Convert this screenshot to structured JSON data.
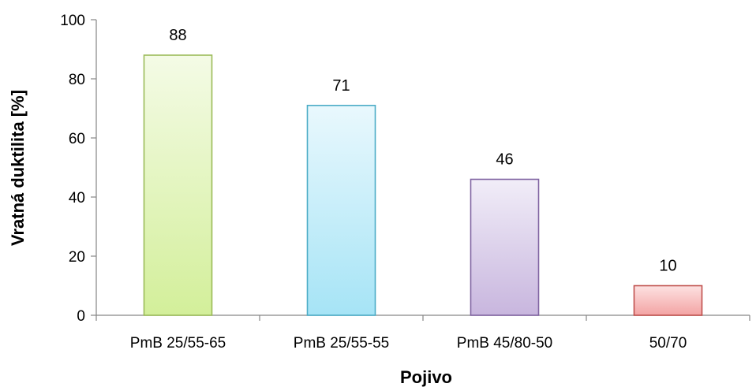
{
  "chart_data": {
    "type": "bar",
    "title": "",
    "xlabel": "Pojivo",
    "ylabel": "Vratná duktilita [%]",
    "ylim": [
      0,
      100
    ],
    "yticks": [
      0,
      20,
      40,
      60,
      80,
      100
    ],
    "grid": false,
    "legend": "none",
    "categories": [
      "PmB 25/55-65",
      "PmB 25/55-55",
      "PmB 45/80-50",
      "50/70"
    ],
    "values": [
      88,
      71,
      46,
      10
    ],
    "data_labels": [
      "88",
      "71",
      "46",
      "10"
    ],
    "bar_colors": [
      {
        "top": "#f4fbe6",
        "bottom": "#d3ef9a",
        "stroke": "#9bbb59"
      },
      {
        "top": "#e9f8fd",
        "bottom": "#a6e4f6",
        "stroke": "#4bacc6"
      },
      {
        "top": "#f1edf8",
        "bottom": "#c8b6de",
        "stroke": "#8064a2"
      },
      {
        "top": "#fde2e2",
        "bottom": "#f3a3a3",
        "stroke": "#c0504d"
      }
    ],
    "axis_color": "#868686"
  }
}
